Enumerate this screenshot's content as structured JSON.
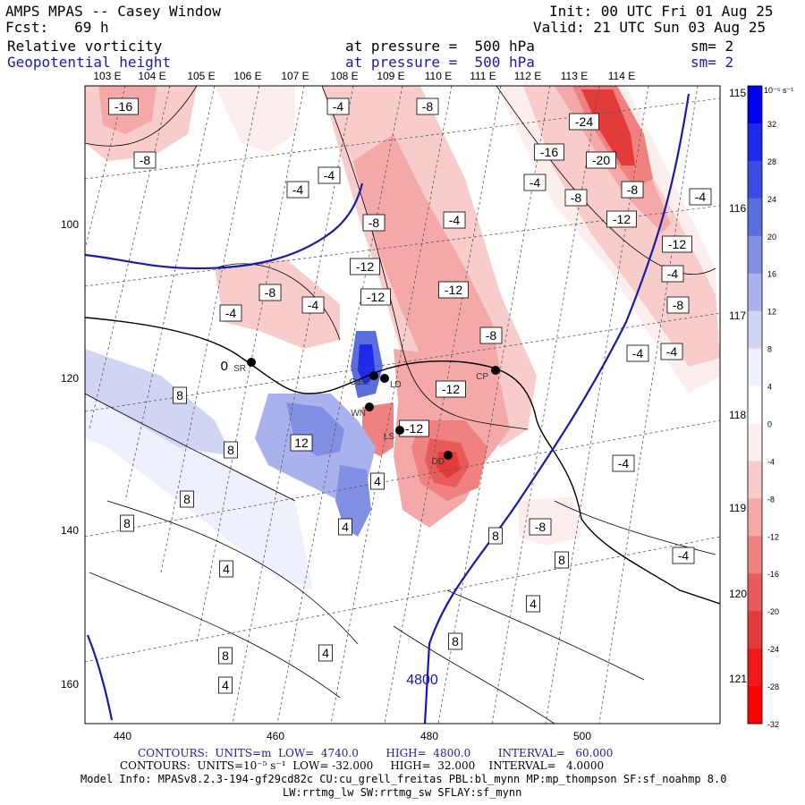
{
  "header": {
    "title": "AMPS MPAS -- Casey Window",
    "forecast": "Fcst:   69 h",
    "init": "Init: 00 UTC Fri 01 Aug 25",
    "valid": "Valid: 21 UTC Sun 03 Aug 25",
    "field1": "Relative vorticity",
    "field1_level": "at pressure =  500 hPa",
    "field1_sm": "sm= 2",
    "field2": "Geopotential height",
    "field2_level": "at pressure =  500 hPa",
    "field2_sm": "sm= 2"
  },
  "map": {
    "lon_labels_top": [
      "103 E",
      "104 E",
      "105 E",
      "106 E",
      "107 E",
      "108 E",
      "109 E",
      "110 E",
      "111 E",
      "112 E",
      "113 E",
      "114 E"
    ],
    "lon_labels_right": [
      "115 E",
      "116 E",
      "117 E",
      "118 E",
      "119 E",
      "120 E",
      "121 E"
    ],
    "x_ticks": [
      "440",
      "460",
      "480",
      "500"
    ],
    "y_ticks": [
      "100",
      "120",
      "140",
      "160"
    ],
    "vorticity_labels_negative": [
      "-16",
      "-8",
      "-4",
      "-8",
      "-4",
      "-4",
      "-8",
      "-4",
      "-12",
      "-8",
      "-4",
      "-12",
      "-12",
      "-4",
      "-8",
      "-12",
      "-12",
      "-24",
      "-20",
      "-16",
      "-8",
      "-4",
      "-12",
      "-8",
      "-4",
      "-12",
      "-4",
      "-8",
      "-4",
      "-4",
      "-4",
      "-8",
      "-4"
    ],
    "vorticity_labels_positive": [
      "8",
      "8",
      "12",
      "8",
      "4",
      "4",
      "8",
      "4",
      "8",
      "8",
      "4",
      "8",
      "4",
      "8",
      "4"
    ],
    "height_label": "4800",
    "stations": [
      "Case",
      "LD",
      "WN",
      "LS",
      "DD",
      "CP",
      "SR"
    ],
    "station_zero": "0"
  },
  "colorbar": {
    "unit": "10⁻⁵ s⁻¹",
    "labels": [
      "32",
      "28",
      "24",
      "20",
      "16",
      "12",
      "8",
      "4",
      "0",
      "-4",
      "-8",
      "-12",
      "-16",
      "-20",
      "-24",
      "-28",
      "-32"
    ],
    "colors": [
      "#0000ee",
      "#1d2ae8",
      "#3a4ce2",
      "#5b6edd",
      "#8290e3",
      "#a9b2ec",
      "#d0d5f4",
      "#eef0fb",
      "#ffffff",
      "#fdeeee",
      "#f9cccc",
      "#f4a8a8",
      "#ef8181",
      "#e95a5a",
      "#e33a3a",
      "#f31818",
      "#ff0000"
    ]
  },
  "footer": {
    "line1": "CONTOURS:  UNITS=m  LOW=  4740.0        HIGH=  4800.0        INTERVAL=   60.000",
    "line2": "CONTOURS:  UNITS=10⁻⁵ s⁻¹  LOW= -32.000     HIGH=  32.000    INTERVAL=   4.0000",
    "line3": "Model Info: MPASv8.2.3-194-gf29cd82c CU:cu_grell_freitas PBL:bl_mynn MP:mp_thompson SF:sf_noahmp 8.0",
    "line4": "LW:rrtmg_lw SW:rrtmg_sw SFLAY:sf_mynn"
  }
}
